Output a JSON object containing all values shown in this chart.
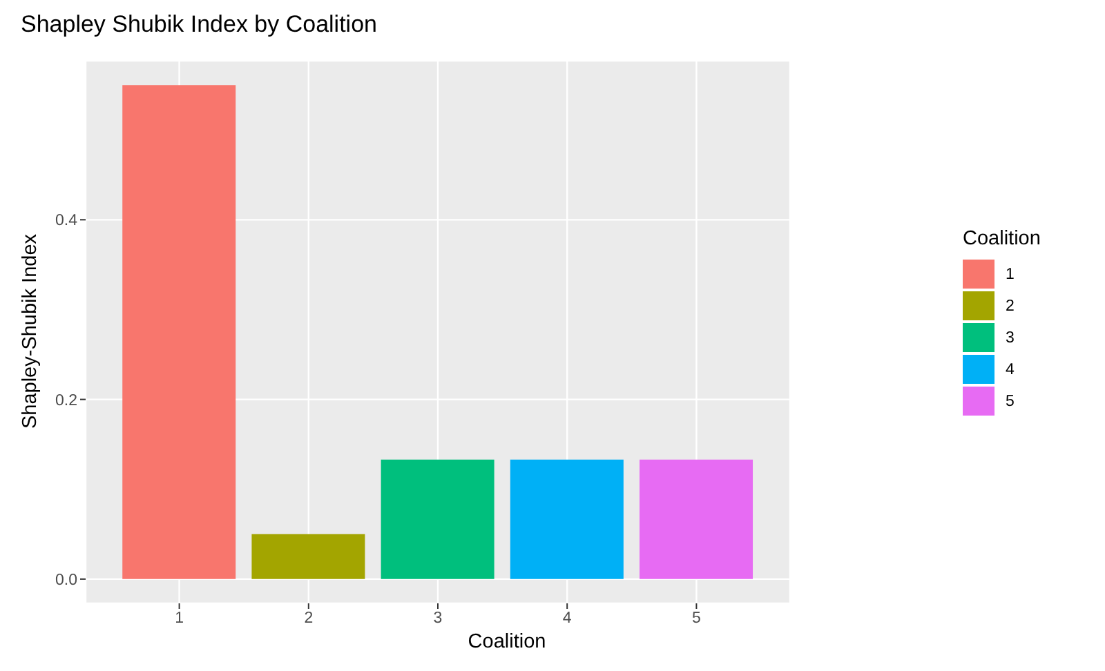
{
  "chart_data": {
    "type": "bar",
    "title": "Shapley Shubik Index by Coalition",
    "xlabel": "Coalition",
    "ylabel": "Shapley-Shubik Index",
    "legend_title": "Coalition",
    "categories": [
      "1",
      "2",
      "3",
      "4",
      "5"
    ],
    "series": [
      {
        "name": "1",
        "color": "#f8766d",
        "values": [
          0.55,
          null,
          null,
          null,
          null
        ]
      },
      {
        "name": "2",
        "color": "#a3a500",
        "values": [
          null,
          0.05,
          null,
          null,
          null
        ]
      },
      {
        "name": "3",
        "color": "#00bf7d",
        "values": [
          null,
          null,
          0.133,
          null,
          null
        ]
      },
      {
        "name": "4",
        "color": "#00b0f6",
        "values": [
          null,
          null,
          null,
          0.133,
          null
        ]
      },
      {
        "name": "5",
        "color": "#e76bf3",
        "values": [
          null,
          null,
          null,
          null,
          0.133
        ]
      }
    ],
    "ylim": [
      -0.027,
      0.577
    ],
    "yticks": [
      {
        "value": 0,
        "label": "0.0"
      },
      {
        "value": 0.2,
        "label": "0.2"
      },
      {
        "value": 0.4,
        "label": "0.4"
      }
    ],
    "grid": true,
    "legend": "right"
  }
}
